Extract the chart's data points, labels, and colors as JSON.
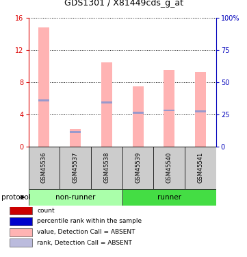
{
  "title": "GDS1301 / X81449cds_g_at",
  "samples": [
    "GSM45536",
    "GSM45537",
    "GSM45538",
    "GSM45539",
    "GSM45540",
    "GSM45541"
  ],
  "pink_bar_heights": [
    14.8,
    2.2,
    10.5,
    7.5,
    9.5,
    9.3
  ],
  "blue_marker_positions": [
    5.7,
    1.8,
    5.5,
    4.2,
    4.5,
    4.4
  ],
  "ylim_left": [
    0,
    16
  ],
  "ylim_right": [
    0,
    100
  ],
  "yticks_left": [
    0,
    4,
    8,
    12,
    16
  ],
  "yticks_right": [
    0,
    25,
    50,
    75,
    100
  ],
  "left_axis_color": "#dd0000",
  "right_axis_color": "#0000bb",
  "pink_bar_color": "#ffb3b3",
  "blue_marker_color": "#9999cc",
  "nonrunner_color": "#aaffaa",
  "runner_color": "#44dd44",
  "protocol_label": "protocol",
  "legend_items": [
    {
      "color": "#cc0000",
      "label": "count"
    },
    {
      "color": "#0000cc",
      "label": "percentile rank within the sample"
    },
    {
      "color": "#ffb3b3",
      "label": "value, Detection Call = ABSENT"
    },
    {
      "color": "#bbbbdd",
      "label": "rank, Detection Call = ABSENT"
    }
  ],
  "bar_width": 0.35,
  "fig_width": 3.61,
  "fig_height": 3.75,
  "dpi": 100
}
